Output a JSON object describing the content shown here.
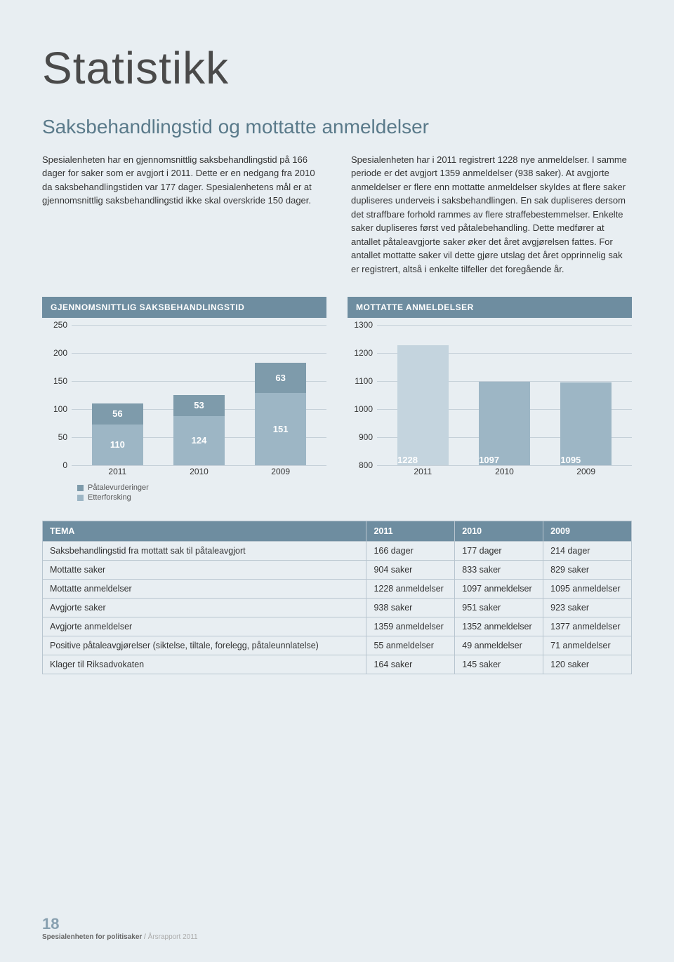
{
  "title": "Statistikk",
  "subtitle": "Saksbehandlingstid og mottatte anmeldelser",
  "paragraphs": {
    "left": "Spesialenheten har en gjennomsnittlig saksbehandlingstid på 166 dager for saker som er avgjort i 2011. Dette er en nedgang fra 2010 da saksbehandlingstiden var 177 dager. Spesialenhetens mål er at gjennomsnittlig saksbehandlingstid ikke skal overskride 150 dager.",
    "right": "Spesialenheten har i 2011 registrert 1228 nye anmeldelser. I samme periode er det avgjort 1359 anmeldelser (938 saker). At avgjorte anmeldelser er flere enn mottatte anmeldelser skyldes at flere saker dupliseres underveis i saksbehandlingen. En sak dupliseres dersom det straffbare forhold rammes av flere straffebestemmelser. Enkelte saker dupliseres først ved påtalebehandling. Dette medfører at antallet påtaleavgjorte saker øker det året avgjørelsen fattes. For antallet mottatte saker vil dette gjøre utslag det året opprinnelig sak er registrert, altså i enkelte tilfeller det foregående år."
  },
  "chart1": {
    "title": "GJENNOMSNITTLIG SAKSBEHANDLINGSTID",
    "type": "stacked-bar",
    "ylim": [
      0,
      250
    ],
    "ytick_step": 50,
    "categories": [
      "2011",
      "2010",
      "2009"
    ],
    "series": [
      {
        "name": "Etterforsking",
        "color": "#9db6c5",
        "values": [
          110,
          124,
          151
        ]
      },
      {
        "name": "Påtalevurderinger",
        "color": "#7e9bab",
        "values": [
          56,
          53,
          63
        ]
      }
    ],
    "bar_width_pct": 20,
    "bar_positions_pct": [
      18,
      50,
      82
    ],
    "grid_color": "#c5d0d8",
    "background_color": "#e8eef2",
    "legend": [
      {
        "label": "Påtalevurderinger",
        "color": "#7e9bab"
      },
      {
        "label": "Etterforsking",
        "color": "#9db6c5"
      }
    ]
  },
  "chart2": {
    "title": "MOTTATTE ANMELDELSER",
    "type": "bar",
    "ylim": [
      800,
      1300
    ],
    "ytick_step": 100,
    "categories": [
      "2011",
      "2010",
      "2009"
    ],
    "values": [
      1228,
      1097,
      1095
    ],
    "bar_color": "#9db6c5",
    "highlight_index": 0,
    "highlight_color": "#c4d4de",
    "bar_width_pct": 20,
    "bar_positions_pct": [
      18,
      50,
      82
    ],
    "grid_color": "#c5d0d8",
    "background_color": "#e8eef2"
  },
  "table": {
    "columns": [
      "TEMA",
      "2011",
      "2010",
      "2009"
    ],
    "rows": [
      [
        "Saksbehandlingstid fra mottatt sak til påtaleavgjort",
        "166 dager",
        "177 dager",
        "214 dager"
      ],
      [
        "Mottatte saker",
        "904 saker",
        "833 saker",
        "829 saker"
      ],
      [
        "Mottatte anmeldelser",
        "1228 anmeldelser",
        "1097 anmeldelser",
        "1095 anmeldelser"
      ],
      [
        "Avgjorte saker",
        "938 saker",
        "951 saker",
        "923 saker"
      ],
      [
        "Avgjorte anmeldelser",
        "1359 anmeldelser",
        "1352 anmeldelser",
        "1377 anmeldelser"
      ],
      [
        "Positive påtaleavgjørelser (siktelse, tiltale, forelegg, påtaleunnlatelse)",
        "55 anmeldelser",
        "49 anmeldelser",
        "71 anmeldelser"
      ],
      [
        "Klager til Riksadvokaten",
        "164 saker",
        "145 saker",
        "120 saker"
      ]
    ],
    "header_bg": "#6e8da0",
    "border_color": "#b8c5cf",
    "col_widths_pct": [
      55,
      15,
      15,
      15
    ]
  },
  "footer": {
    "page_number": "18",
    "org": "Spesialenheten for politisaker",
    "report": "Årsrapport 2011"
  }
}
